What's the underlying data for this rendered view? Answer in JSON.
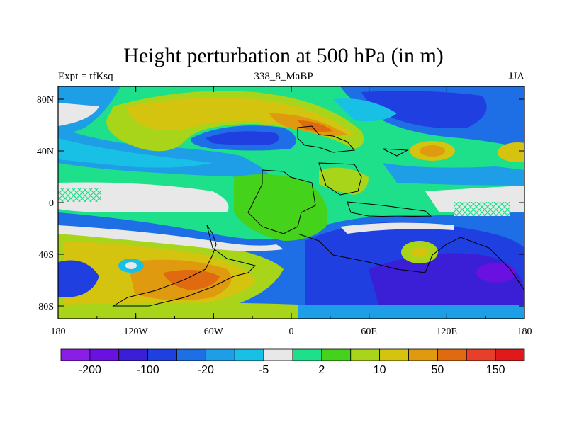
{
  "title": "Height perturbation at 500 hPa (in m)",
  "subtitle_left": "Expt = tfKsq",
  "subtitle_center": "338_8_MaBP",
  "subtitle_right": "JJA",
  "axes": {
    "lon_labels": [
      "180",
      "120W",
      "60W",
      "0",
      "60E",
      "120E",
      "180"
    ],
    "lat_labels": [
      "80N",
      "40N",
      "0",
      "40S",
      "80S"
    ]
  },
  "colorbar": {
    "colors": [
      "#8a1ee6",
      "#6a10e0",
      "#3a1fd6",
      "#1f3fe0",
      "#1e6ee6",
      "#1e9ee6",
      "#19c0e6",
      "#e8e8e8",
      "#1ee08a",
      "#44d21a",
      "#a8d41a",
      "#d4c410",
      "#e09a10",
      "#e06a10",
      "#e6402a",
      "#e01a1a"
    ],
    "labels": [
      "-200",
      "-100",
      "-20",
      "-5",
      "2",
      "10",
      "50",
      "150"
    ]
  }
}
